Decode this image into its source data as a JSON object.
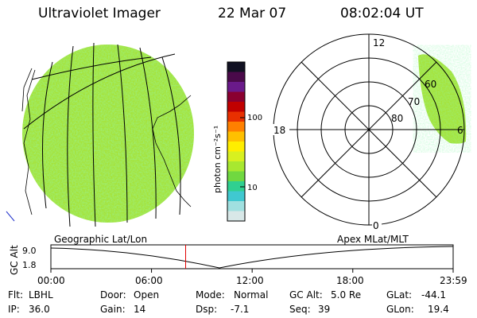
{
  "header": {
    "instrument": "Ultraviolet Imager",
    "date": "22 Mar 07",
    "time": "08:02:04 UT"
  },
  "colorbar": {
    "unit_label": "photon cm⁻²s⁻¹",
    "ticks": [
      "100",
      "10"
    ],
    "scale": "log",
    "colors": [
      "#111122",
      "#4a0a4a",
      "#6a1a8a",
      "#8a0030",
      "#c00000",
      "#e83000",
      "#ff8000",
      "#ffc000",
      "#ffee00",
      "#d8f020",
      "#a8e830",
      "#70d840",
      "#30d090",
      "#40c8d0",
      "#a0e0e0",
      "#d8e8e8"
    ]
  },
  "polar_plot": {
    "mlt_labels": {
      "top": "12",
      "left": "18",
      "bottom": "0",
      "right": "6"
    },
    "mlat_labels": [
      "60",
      "70",
      "80"
    ]
  },
  "timeline": {
    "left_title": "Geographic Lat/Lon",
    "right_title": "Apex MLat/MLT",
    "axis_title": "GC Alt",
    "y_ticks": [
      "9.0",
      "1.8"
    ],
    "x_ticks": [
      "00:00",
      "06:00",
      "12:00",
      "18:00",
      "23:59"
    ],
    "current_marker_time": "08:02",
    "marker_color": "#e00000"
  },
  "params": {
    "flt_label": "Flt:",
    "flt_value": "LBHL",
    "ip_label": "IP:",
    "ip_value": "36.0",
    "door_label": "Door:",
    "door_value": "Open",
    "gain_label": "Gain:",
    "gain_value": "14",
    "mode_label": "Mode:",
    "mode_value": "Normal",
    "dsp_label": "Dsp:",
    "dsp_value": "-7.1",
    "gcalt_label": "GC Alt:",
    "gcalt_value": "5.0 Re",
    "seq_label": "Seq:",
    "seq_value": "39",
    "glat_label": "GLat:",
    "glat_value": "-44.1",
    "glon_label": "GLon:",
    "glon_value": "19.4"
  }
}
